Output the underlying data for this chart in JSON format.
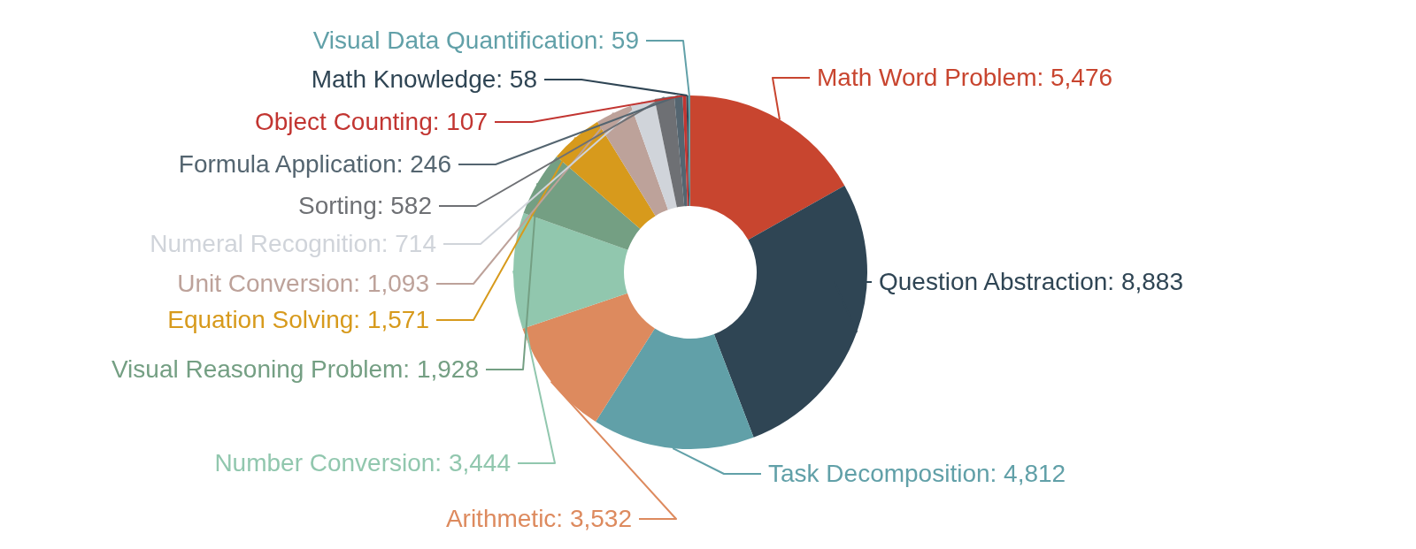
{
  "chart_data": {
    "type": "donut",
    "categories": [
      "Math Word Problem",
      "Question Abstraction",
      "Task Decomposition",
      "Arithmetic",
      "Number Conversion",
      "Visual Reasoning Problem",
      "Equation Solving",
      "Unit Conversion",
      "Numeral Recognition",
      "Sorting",
      "Formula Application",
      "Object Counting",
      "Math Knowledge",
      "Visual Data Quantification"
    ],
    "values": [
      5476,
      8883,
      4812,
      3532,
      3444,
      1928,
      1571,
      1093,
      714,
      582,
      246,
      107,
      58,
      59
    ],
    "value_labels": [
      "5,476",
      "8,883",
      "4,812",
      "3,532",
      "3,444",
      "1,928",
      "1,571",
      "1,093",
      "714",
      "582",
      "246",
      "107",
      "58",
      "59"
    ],
    "colors": [
      "#c8452f",
      "#2f4554",
      "#61a0a8",
      "#dd8a5e",
      "#91c7ae",
      "#749f83",
      "#d79a1c",
      "#bda29a",
      "#d0d4da",
      "#6e7074",
      "#546570",
      "#c23531",
      "#2f4554",
      "#61a0a8"
    ]
  }
}
